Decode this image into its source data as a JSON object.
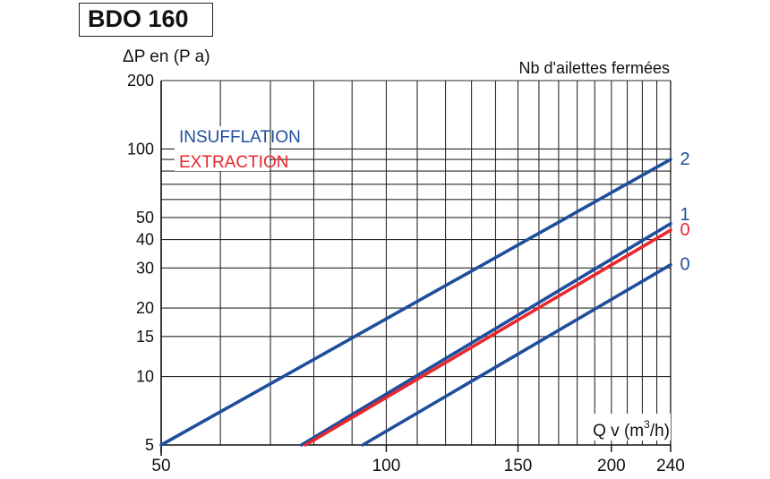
{
  "chart_data": {
    "type": "line",
    "title": "BDO 160",
    "ylabel": "ΔP en (P a)",
    "xlabel_prefix": "Q v",
    "xlabel_unit": "(m",
    "xlabel_sup": "3",
    "xlabel_suffix": "/h)",
    "legend_title": "Nb d'ailettes fermées",
    "x_scale": "log",
    "y_scale": "log",
    "xlim": [
      50,
      240
    ],
    "ylim": [
      5,
      200
    ],
    "x_ticks": [
      50,
      100,
      150,
      200,
      240
    ],
    "x_tick_labels": [
      "50",
      "100",
      "150",
      "200",
      "240"
    ],
    "x_minor_ticks": [
      60,
      70,
      80,
      90,
      110,
      120,
      130,
      140,
      160,
      170,
      180,
      190,
      210,
      220,
      230
    ],
    "y_ticks": [
      5,
      10,
      15,
      20,
      30,
      40,
      50,
      100,
      200
    ],
    "y_tick_labels": [
      "5",
      "10",
      "15",
      "20",
      "30",
      "40",
      "50",
      "100",
      "200"
    ],
    "y_minor_ticks": [
      60,
      70,
      80,
      90
    ],
    "grid": true,
    "legend": {
      "position": "top-left",
      "entries": [
        {
          "label": "INSUFFLATION",
          "color": "#1f4e9c"
        },
        {
          "label": "EXTRACTION",
          "color": "#e8282e"
        }
      ]
    },
    "series": [
      {
        "label": "2",
        "color": "#1f4e9c",
        "points": [
          [
            50,
            5
          ],
          [
            240,
            90
          ]
        ]
      },
      {
        "label": "1",
        "color": "#1f4e9c",
        "points": [
          [
            77,
            5
          ],
          [
            240,
            47
          ]
        ]
      },
      {
        "label": "0",
        "color": "#e8282e",
        "points": [
          [
            78,
            5
          ],
          [
            240,
            44
          ]
        ]
      },
      {
        "label": "0",
        "color": "#1f4e9c",
        "points": [
          [
            93,
            5
          ],
          [
            240,
            31
          ]
        ]
      }
    ]
  }
}
